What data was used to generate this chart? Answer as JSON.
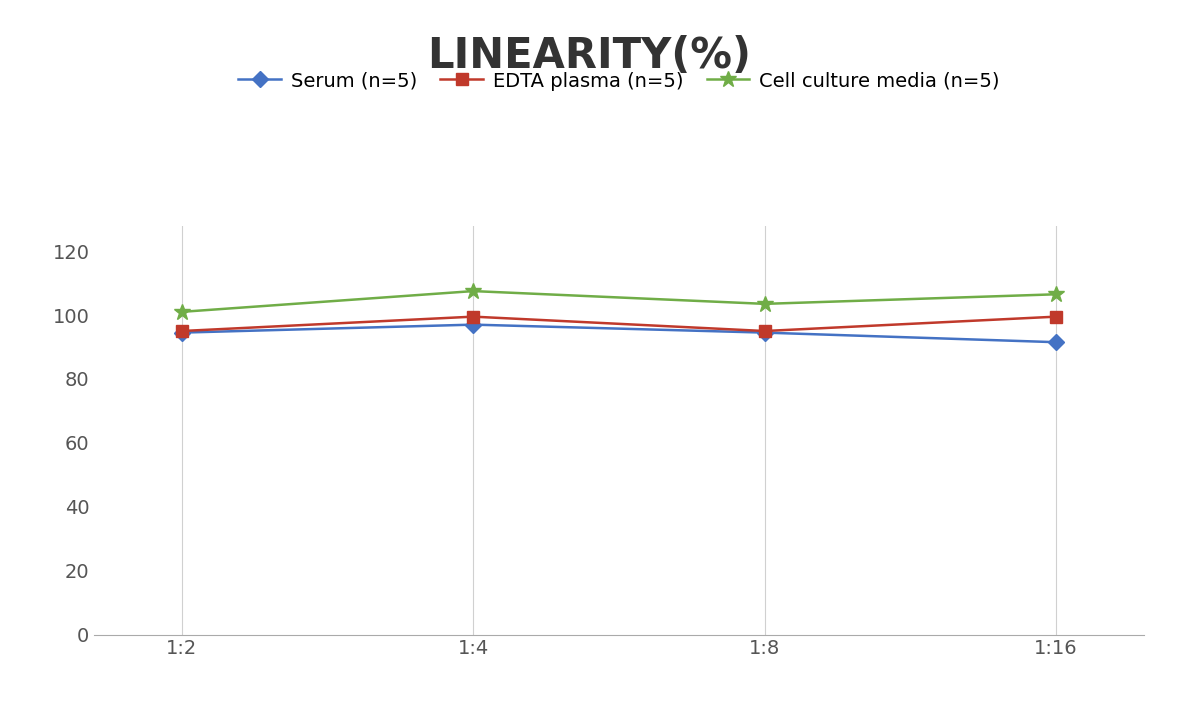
{
  "title": "LINEARITY(%)",
  "title_fontsize": 30,
  "title_fontweight": "bold",
  "x_labels": [
    "1:2",
    "1:4",
    "1:8",
    "1:16"
  ],
  "x_positions": [
    0,
    1,
    2,
    3
  ],
  "series": [
    {
      "label": "Serum (n=5)",
      "values": [
        94.5,
        97.0,
        94.5,
        91.5
      ],
      "color": "#4472C4",
      "marker": "D",
      "markersize": 8,
      "linewidth": 1.8
    },
    {
      "label": "EDTA plasma (n=5)",
      "values": [
        95.0,
        99.5,
        95.0,
        99.5
      ],
      "color": "#C0392B",
      "marker": "s",
      "markersize": 8,
      "linewidth": 1.8
    },
    {
      "label": "Cell culture media (n=5)",
      "values": [
        101.0,
        107.5,
        103.5,
        106.5
      ],
      "color": "#70AD47",
      "marker": "*",
      "markersize": 12,
      "linewidth": 1.8
    }
  ],
  "ylim": [
    0,
    128
  ],
  "yticks": [
    0,
    20,
    40,
    60,
    80,
    100,
    120
  ],
  "grid_color": "#D0D0D0",
  "grid_linewidth": 0.8,
  "background_color": "#FFFFFF",
  "legend_fontsize": 14,
  "tick_fontsize": 14
}
